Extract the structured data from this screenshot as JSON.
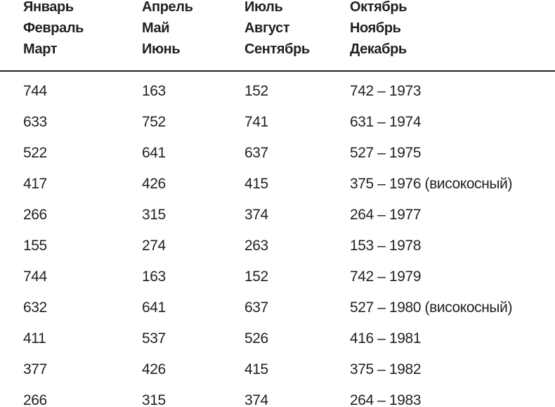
{
  "table": {
    "header": [
      [
        "Январь",
        "Февраль",
        "Март"
      ],
      [
        "Апрель",
        "Май",
        "Июнь"
      ],
      [
        "Июль",
        "Август",
        "Сентябрь"
      ],
      [
        "Октябрь",
        "Ноябрь",
        "Декабрь"
      ]
    ],
    "rows": [
      [
        "744",
        "163",
        "152",
        "742 – 1973"
      ],
      [
        "633",
        "752",
        "741",
        "631 – 1974"
      ],
      [
        "522",
        "641",
        "637",
        "527 – 1975"
      ],
      [
        "417",
        "426",
        "415",
        "375 – 1976 (високосный)"
      ],
      [
        "266",
        "315",
        "374",
        "264 – 1977"
      ],
      [
        "155",
        "274",
        "263",
        "153 – 1978"
      ],
      [
        "744",
        "163",
        "152",
        "742 – 1979"
      ],
      [
        "632",
        "641",
        "637",
        "527 – 1980 (високосный)"
      ],
      [
        "411",
        "537",
        "526",
        "416 – 1981"
      ],
      [
        "377",
        "426",
        "415",
        "375 – 1982"
      ],
      [
        "266",
        "315",
        "374",
        "264 – 1983"
      ]
    ]
  }
}
